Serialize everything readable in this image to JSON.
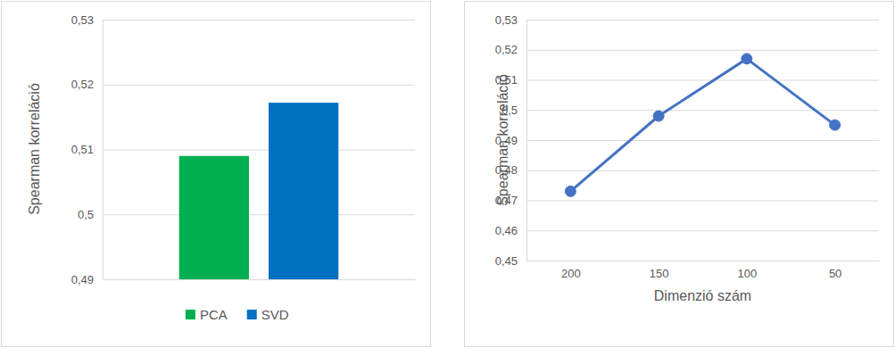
{
  "chart_data": [
    {
      "type": "bar",
      "y_label": "Spearman korreláció",
      "categories": [
        null
      ],
      "series": [
        {
          "name": "PCA",
          "color": "#00b050",
          "values": [
            0.509
          ]
        },
        {
          "name": "SVD",
          "color": "#0070c0",
          "values": [
            0.5172
          ]
        }
      ],
      "ylim": [
        0.49,
        0.53
      ],
      "yticks": [
        {
          "value": 0.49,
          "label": "0,49"
        },
        {
          "value": 0.5,
          "label": "0,5"
        },
        {
          "value": 0.51,
          "label": "0,51"
        },
        {
          "value": 0.52,
          "label": "0,52"
        },
        {
          "value": 0.53,
          "label": "0,53"
        }
      ],
      "grid": true,
      "legend": "bottom"
    },
    {
      "type": "line",
      "x_label": "Dimenzió szám",
      "y_label": "Spearman korreláció",
      "categories": [
        "200",
        "150",
        "100",
        "50"
      ],
      "values": [
        0.473,
        0.498,
        0.517,
        0.495
      ],
      "color": "#4472c4",
      "marker": "circle",
      "ylim": [
        0.45,
        0.53
      ],
      "yticks": [
        {
          "value": 0.45,
          "label": "0,45"
        },
        {
          "value": 0.46,
          "label": "0,46"
        },
        {
          "value": 0.47,
          "label": "0,47"
        },
        {
          "value": 0.48,
          "label": "0,48"
        },
        {
          "value": 0.49,
          "label": "0,49"
        },
        {
          "value": 0.5,
          "label": "0,5"
        },
        {
          "value": 0.51,
          "label": "0,51"
        },
        {
          "value": 0.52,
          "label": "0,52"
        },
        {
          "value": 0.53,
          "label": "0,53"
        }
      ],
      "grid": true
    }
  ]
}
